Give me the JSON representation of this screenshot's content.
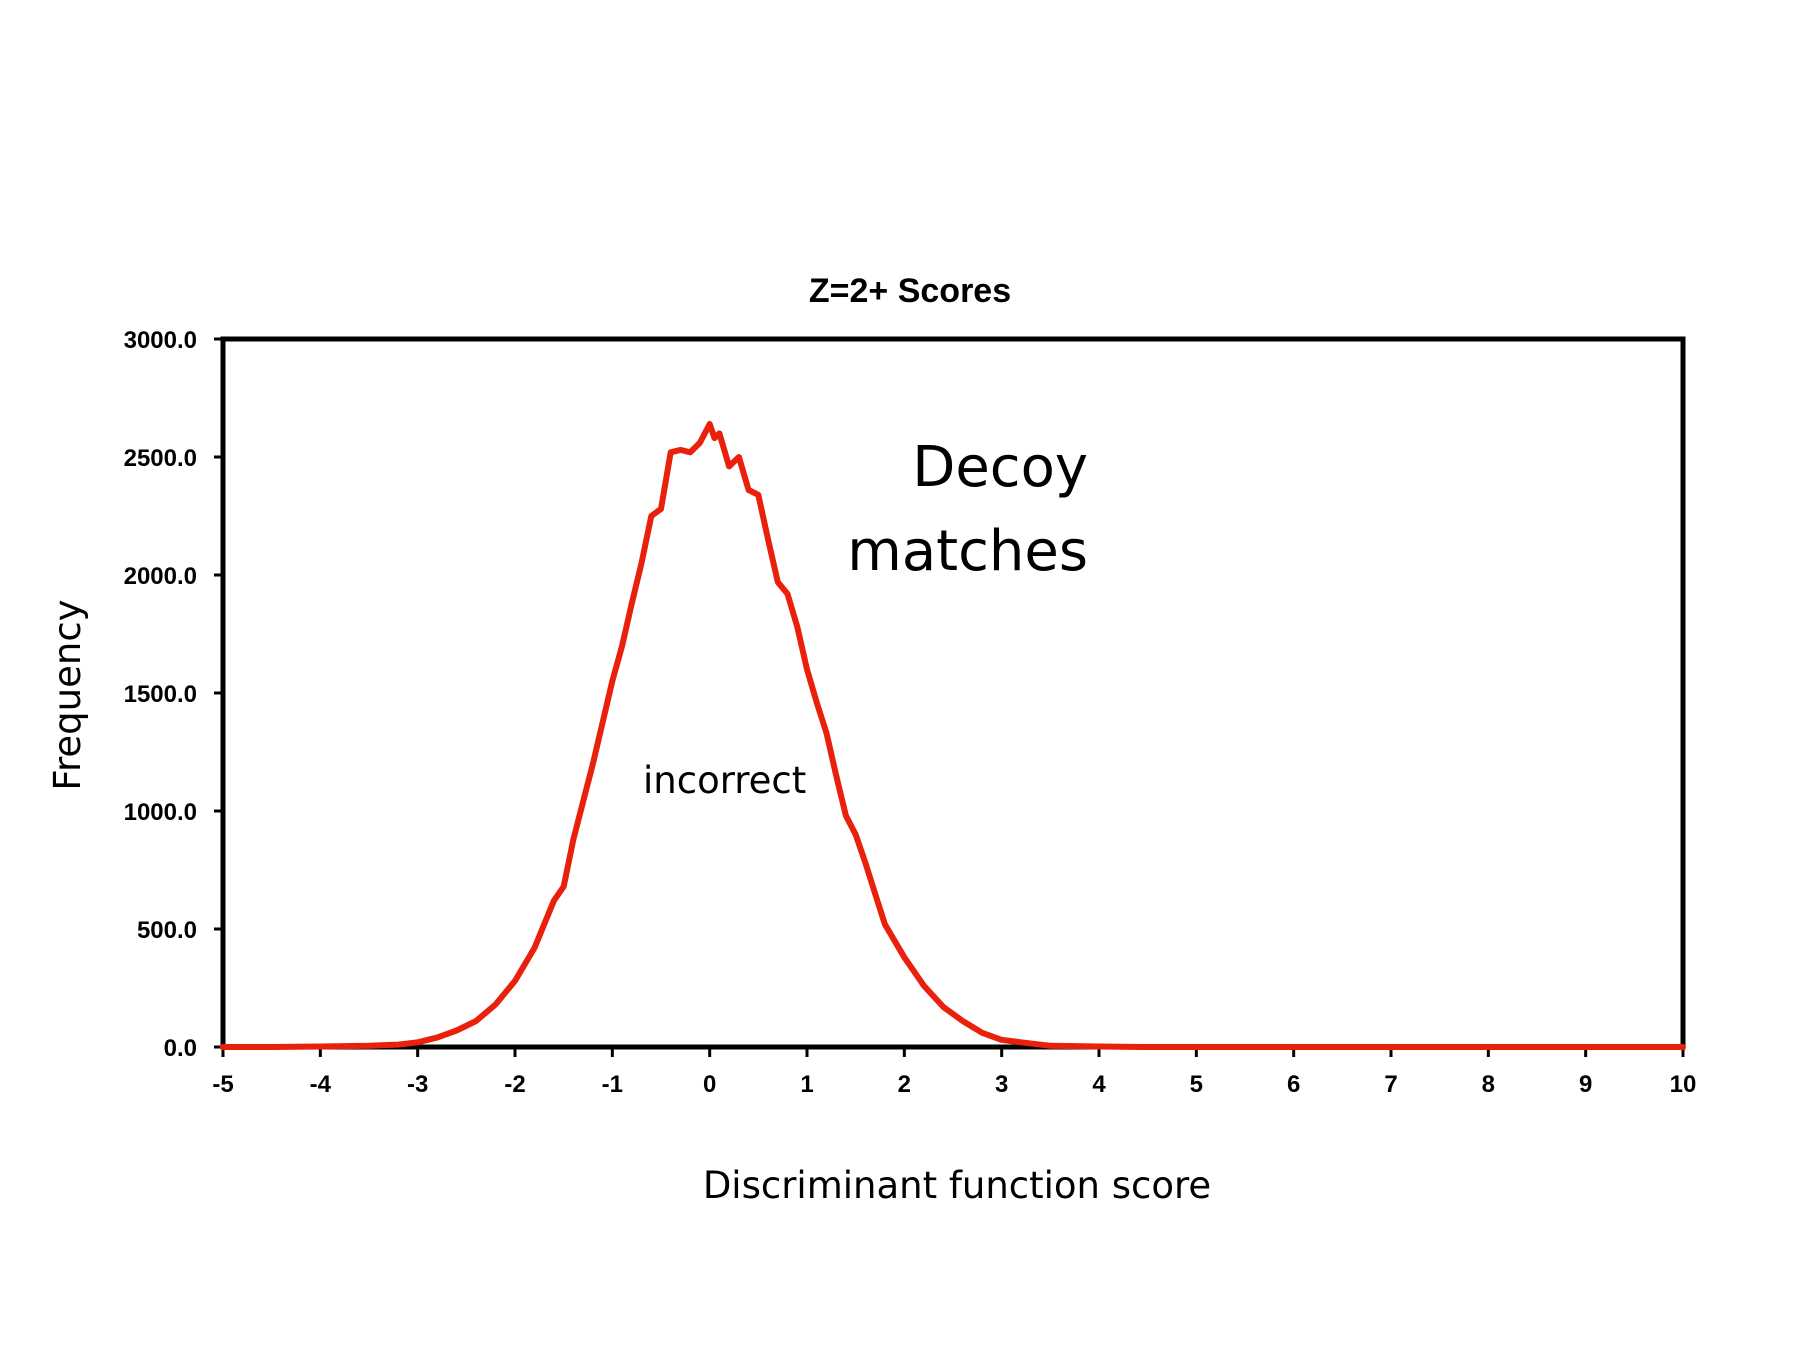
{
  "chart_data": {
    "type": "line",
    "title": "Z=2+ Scores",
    "xlabel": "Discriminant function score",
    "ylabel": "Frequency",
    "xlim": [
      -5,
      10
    ],
    "ylim": [
      0,
      3000
    ],
    "x_ticks": [
      "-5",
      "-4",
      "-3",
      "-2",
      "-1",
      "0",
      "1",
      "2",
      "3",
      "4",
      "5",
      "6",
      "7",
      "8",
      "9",
      "10"
    ],
    "y_ticks": [
      "0.0",
      "500.0",
      "1000.0",
      "1500.0",
      "2000.0",
      "2500.0",
      "3000.0"
    ],
    "grid": false,
    "series": [
      {
        "color": "#e8200c",
        "x": [
          -5,
          -4.5,
          -4,
          -3.5,
          -3.2,
          -3.0,
          -2.8,
          -2.6,
          -2.4,
          -2.2,
          -2.0,
          -1.8,
          -1.6,
          -1.5,
          -1.4,
          -1.2,
          -1.0,
          -0.9,
          -0.8,
          -0.7,
          -0.6,
          -0.5,
          -0.4,
          -0.3,
          -0.2,
          -0.1,
          0.0,
          0.05,
          0.1,
          0.2,
          0.3,
          0.4,
          0.5,
          0.6,
          0.7,
          0.8,
          0.9,
          1.0,
          1.1,
          1.2,
          1.3,
          1.4,
          1.5,
          1.6,
          1.7,
          1.8,
          2.0,
          2.2,
          2.4,
          2.6,
          2.8,
          3.0,
          3.2,
          3.5,
          4.0,
          4.5,
          5.0,
          6.0,
          7.0,
          8.0,
          9.0,
          10.0
        ],
        "y": [
          0,
          0,
          2,
          5,
          10,
          20,
          40,
          70,
          110,
          180,
          280,
          420,
          620,
          680,
          880,
          1200,
          1550,
          1700,
          1880,
          2050,
          2250,
          2280,
          2520,
          2530,
          2520,
          2560,
          2640,
          2580,
          2600,
          2460,
          2500,
          2360,
          2340,
          2150,
          1970,
          1920,
          1780,
          1600,
          1460,
          1330,
          1150,
          980,
          900,
          780,
          650,
          520,
          380,
          260,
          170,
          110,
          60,
          30,
          20,
          5,
          2,
          0,
          0,
          0,
          0,
          0,
          0,
          0
        ]
      }
    ],
    "annotations": [
      {
        "text": "Decoy"
      },
      {
        "text": "matches"
      },
      {
        "text": "incorrect"
      }
    ]
  }
}
